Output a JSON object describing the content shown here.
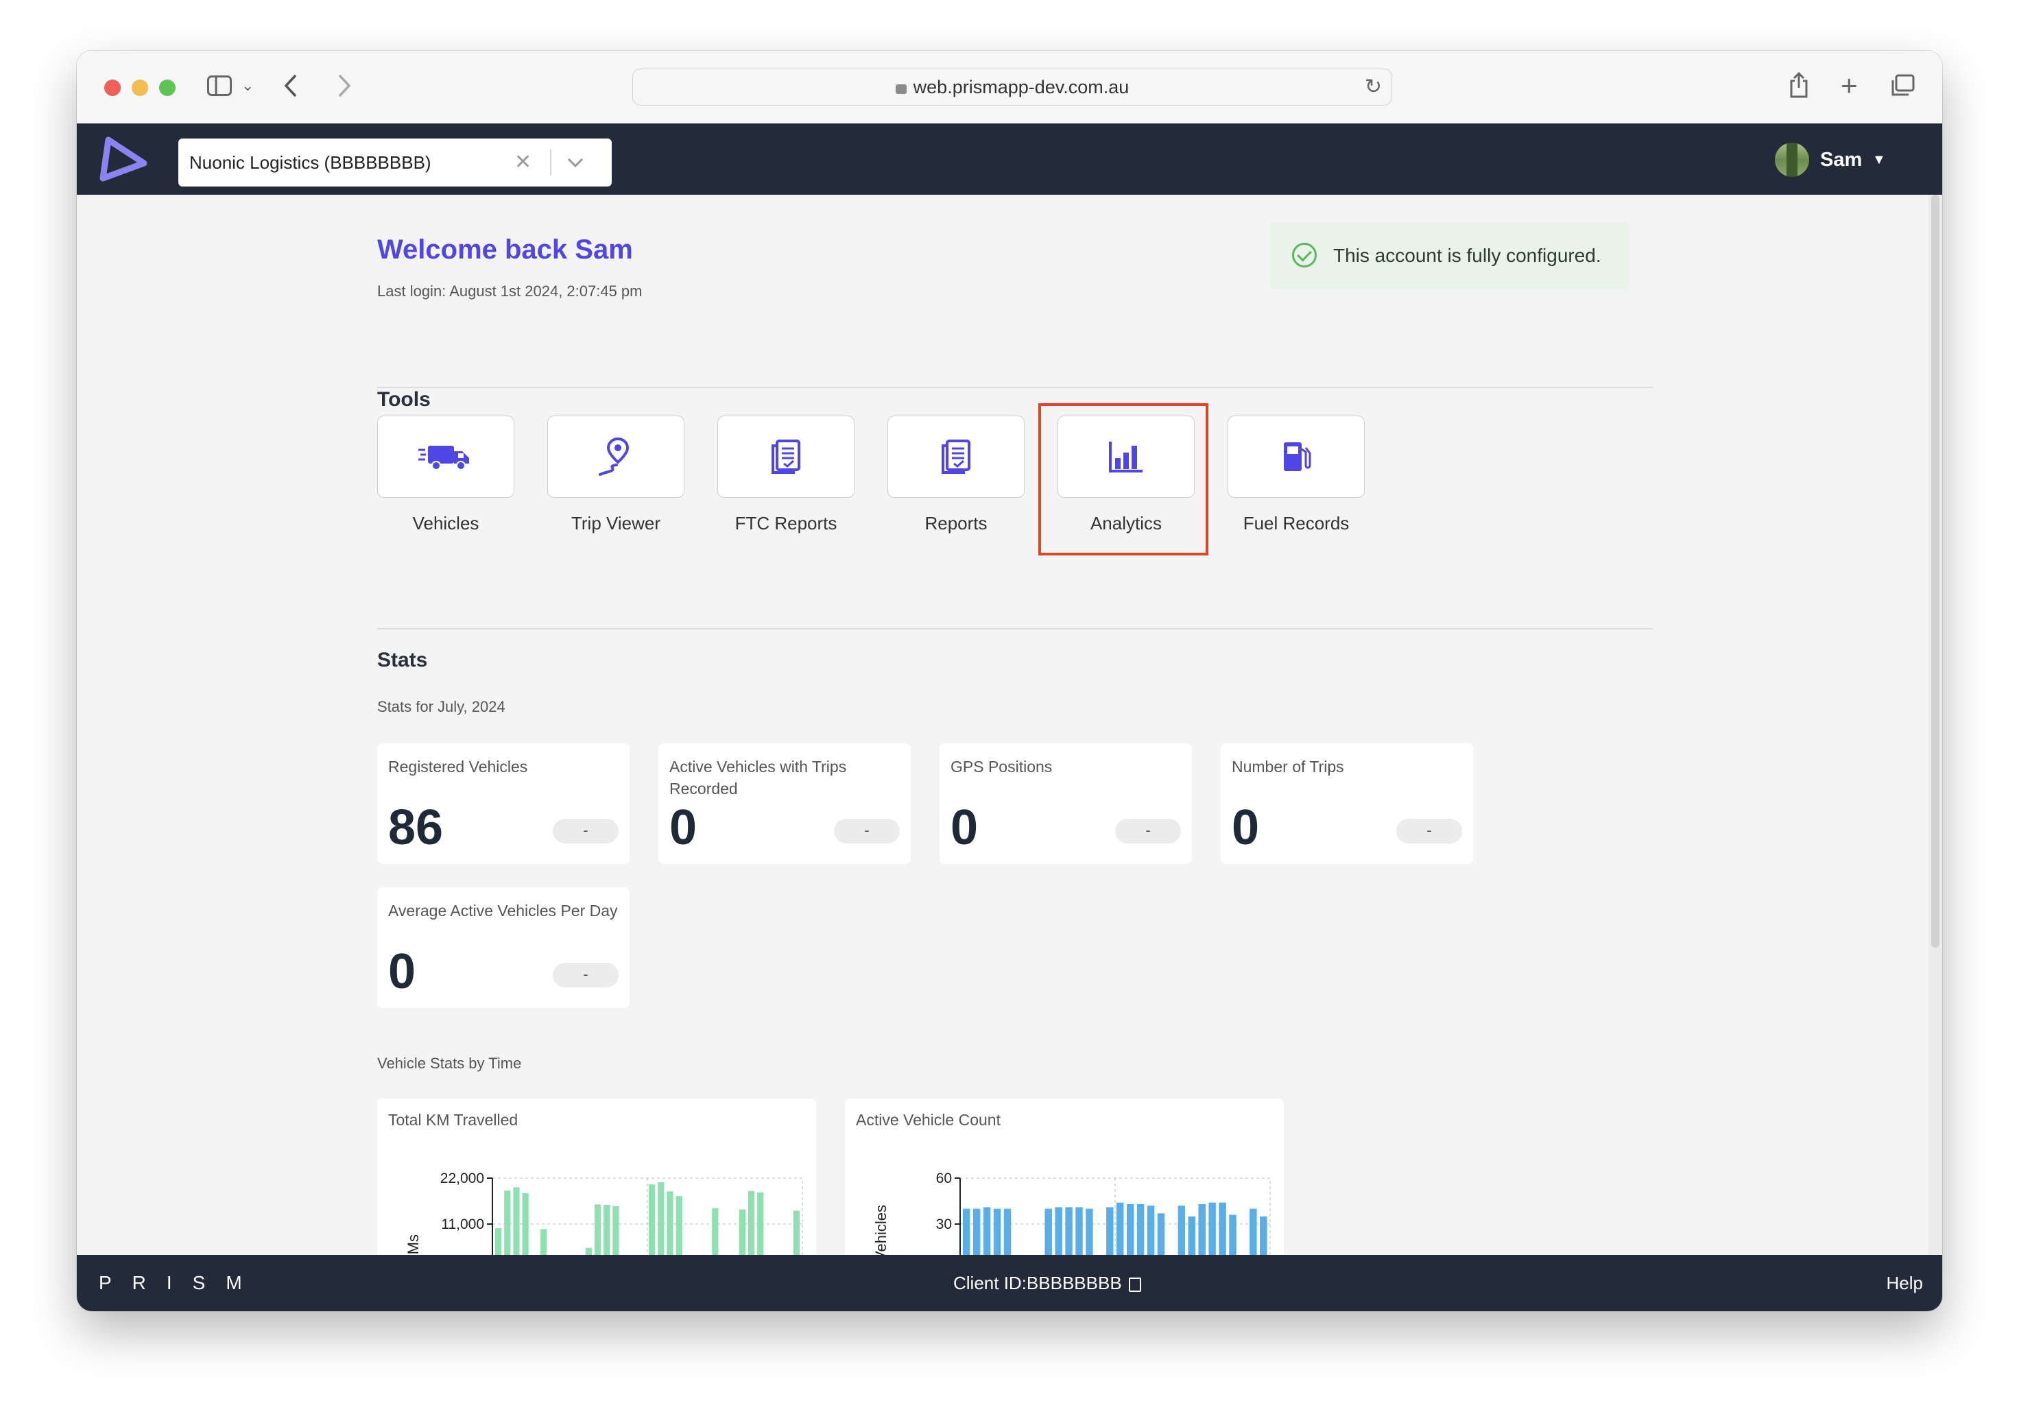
{
  "browser": {
    "url": "web.prismapp-dev.com.au"
  },
  "header": {
    "organization_select": {
      "value": "Nuonic Logistics (BBBBBBBB)"
    },
    "user": {
      "name": "Sam"
    }
  },
  "welcome": {
    "title": "Welcome back Sam",
    "last_login": "Last login: August 1st 2024, 2:07:45 pm",
    "status": "This account is fully configured."
  },
  "tools": {
    "title": "Tools",
    "items": [
      {
        "label": "Vehicles",
        "icon": "truck-icon"
      },
      {
        "label": "Trip Viewer",
        "icon": "map-pin-icon"
      },
      {
        "label": "FTC Reports",
        "icon": "document-icon"
      },
      {
        "label": "Reports",
        "icon": "document-icon"
      },
      {
        "label": "Analytics",
        "icon": "bar-chart-icon"
      },
      {
        "label": "Fuel Records",
        "icon": "fuel-pump-icon"
      }
    ]
  },
  "stats": {
    "title": "Stats",
    "subtitle": "Stats for July, 2024",
    "cards": [
      {
        "title": "Registered Vehicles",
        "value": "86",
        "change": "-"
      },
      {
        "title": "Active Vehicles with Trips Recorded",
        "value": "0",
        "change": "-"
      },
      {
        "title": "GPS Positions",
        "value": "0",
        "change": "-"
      },
      {
        "title": "Number of Trips",
        "value": "0",
        "change": "-"
      },
      {
        "title": "Average Active Vehicles Per Day",
        "value": "0",
        "change": "-"
      }
    ]
  },
  "vehicle_stats": {
    "title": "Vehicle Stats by Time"
  },
  "chart_data": [
    {
      "type": "bar",
      "title": "Total KM Travelled",
      "xlabel": "",
      "ylabel": "KMs",
      "ylim": [
        0,
        22000
      ],
      "yticks": [
        {
          "value": 22000,
          "label": "22,000"
        },
        {
          "value": 11000,
          "label": "11,000"
        }
      ],
      "grid": true,
      "color": "#8fdfb0",
      "values": [
        10000,
        19000,
        19800,
        18400,
        0,
        9800,
        0,
        0,
        0,
        0,
        5300,
        15700,
        15600,
        15300,
        0,
        0,
        0,
        20500,
        21000,
        18800,
        17700,
        0,
        0,
        0,
        14800,
        0,
        0,
        14500,
        18900,
        18600,
        0,
        0,
        0,
        14200
      ]
    },
    {
      "type": "bar",
      "title": "Active Vehicle Count",
      "xlabel": "",
      "ylabel": "Vehicles",
      "ylim": [
        0,
        60
      ],
      "yticks": [
        {
          "value": 60,
          "label": "60"
        },
        {
          "value": 30,
          "label": "30"
        }
      ],
      "grid": true,
      "color": "#5aaee8",
      "values": [
        40,
        40,
        41,
        40,
        40,
        0,
        0,
        0,
        40,
        41,
        41,
        41,
        40,
        0,
        41,
        44,
        43,
        43,
        42,
        37,
        0,
        42,
        35,
        43,
        44,
        44,
        36,
        0,
        40,
        35
      ]
    }
  ],
  "footer": {
    "brand": "PRISM",
    "client_id": "Client ID:BBBBBBBB",
    "help": "Help"
  }
}
